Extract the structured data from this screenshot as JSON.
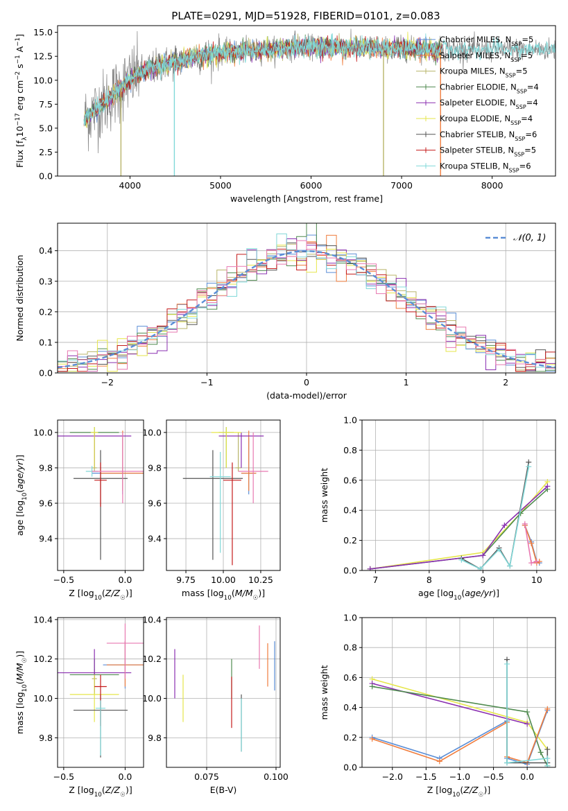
{
  "figure_title": "PLATE=0291, MJD=51928, FIBERID=0101, z=0.083",
  "colors": {
    "chabrier_miles": "#5b8ed6",
    "salpeter_miles": "#f07c3c",
    "kroupa_miles": "#b8b46a",
    "chabrier_elodie": "#4f8a4f",
    "salpeter_elodie": "#8a2fb0",
    "kroupa_elodie": "#e6e64a",
    "chabrier_stelib": "#555555",
    "salpeter_stelib": "#c41a1a",
    "kroupa_stelib": "#80d8d8",
    "extra_pink": "#e878b0",
    "normal": "#5b8ed6",
    "data": "#808080"
  },
  "chart_data": [
    {
      "id": "spectrum",
      "type": "line",
      "xlabel": "wavelength [Angstrom, rest frame]",
      "ylabel": "Flux [f_λ 10^-17 erg cm^-2 s^-1 A^-1]",
      "xlim": [
        3200,
        8700
      ],
      "ylim": [
        0,
        15.7
      ],
      "xticks": [
        4000,
        5000,
        6000,
        7000,
        8000
      ],
      "yticks": [
        0.0,
        2.5,
        5.0,
        7.5,
        10.0,
        12.5,
        15.0
      ],
      "legend_placement": "right",
      "legend": [
        {
          "key": "chabrier_miles",
          "label": "Chabrier MILES, N",
          "sub": "SSP",
          "suffix": "=5"
        },
        {
          "key": "salpeter_miles",
          "label": "Salpeter MILES, N",
          "sub": "SSP",
          "suffix": "=5"
        },
        {
          "key": "kroupa_miles",
          "label": "Kroupa MILES, N",
          "sub": "SSP",
          "suffix": "=5"
        },
        {
          "key": "chabrier_elodie",
          "label": "Chabrier ELODIE, N",
          "sub": "SSP",
          "suffix": "=4"
        },
        {
          "key": "salpeter_elodie",
          "label": "Salpeter ELODIE, N",
          "sub": "SSP",
          "suffix": "=4"
        },
        {
          "key": "kroupa_elodie",
          "label": "Kroupa ELODIE, N",
          "sub": "SSP",
          "suffix": "=4"
        },
        {
          "key": "chabrier_stelib",
          "label": "Chabrier STELIB, N",
          "sub": "SSP",
          "suffix": "=6"
        },
        {
          "key": "salpeter_stelib",
          "label": "Salpeter STELIB, N",
          "sub": "SSP",
          "suffix": "=5"
        },
        {
          "key": "kroupa_stelib",
          "label": "Kroupa STELIB, N",
          "sub": "SSP",
          "suffix": "=6"
        }
      ],
      "continuum": {
        "x": [
          3500,
          3700,
          3900,
          4050,
          4300,
          4600,
          5000,
          5500,
          6000,
          6500,
          7000,
          7400
        ],
        "y": [
          6.0,
          7.5,
          9.2,
          10.5,
          11.5,
          12.2,
          12.9,
          13.2,
          13.5,
          13.4,
          13.3,
          13.2
        ]
      },
      "dropouts": [
        {
          "x": 3900,
          "key": "kroupa_miles"
        },
        {
          "x": 4490,
          "key": "kroupa_stelib"
        },
        {
          "x": 6800,
          "key": "kroupa_miles"
        },
        {
          "x": 7430,
          "key": "salpeter_miles"
        }
      ]
    },
    {
      "id": "residuals",
      "type": "bar",
      "xlabel": "(data-model)/error",
      "ylabel": "Normed distribution",
      "xlim": [
        -2.5,
        2.5
      ],
      "ylim": [
        0,
        0.49
      ],
      "xticks": [
        -2,
        -1,
        0,
        1,
        2
      ],
      "yticks": [
        0.0,
        0.1,
        0.2,
        0.3,
        0.4
      ],
      "legend": [
        {
          "label": "𝒩(0, 1)"
        }
      ],
      "legend_placement": "top-right",
      "grid": true,
      "bin_width": 0.1
    },
    {
      "id": "age_vs_Z",
      "type": "scatter",
      "xlabel": "Z [log10(Z/Z☉)]",
      "ylabel": "age [log10(age/yr)]",
      "xlim": [
        -0.55,
        0.15
      ],
      "ylim": [
        9.22,
        10.07
      ],
      "xticks": [
        -0.5,
        0.0
      ],
      "xtick_labels": [
        "−0.5",
        "0.0"
      ],
      "yticks": [
        9.4,
        9.6,
        9.8,
        10.0
      ],
      "grid": true,
      "points": [
        {
          "key": "chabrier_miles",
          "x": -0.02,
          "y": 9.77,
          "xerr": 0.25,
          "yerr": [
            0.12,
            0.2
          ]
        },
        {
          "key": "salpeter_miles",
          "x": -0.02,
          "y": 9.77,
          "xerr": 0.18,
          "yerr": [
            0.1,
            0.24
          ]
        },
        {
          "key": "kroupa_miles",
          "x": -0.25,
          "y": 9.8,
          "xerr": 0.02,
          "yerr": [
            0.02,
            0.2
          ]
        },
        {
          "key": "chabrier_elodie",
          "x": -0.25,
          "y": 10.0,
          "xerr": 0.2,
          "yerr": [
            0.2,
            0.03
          ]
        },
        {
          "key": "salpeter_elodie",
          "x": -0.25,
          "y": 9.98,
          "xerr": 0.3,
          "yerr": [
            0.18,
            0.02
          ]
        },
        {
          "key": "kroupa_elodie",
          "x": -0.25,
          "y": 10.0,
          "xerr": 0.03,
          "yerr": [
            0.2,
            0.03
          ]
        },
        {
          "key": "chabrier_stelib",
          "x": -0.2,
          "y": 9.74,
          "xerr": 0.22,
          "yerr": [
            0.46,
            0.16
          ]
        },
        {
          "key": "salpeter_stelib",
          "x": -0.2,
          "y": 9.73,
          "xerr": 0.05,
          "yerr": [
            0.15,
            0.1
          ]
        },
        {
          "key": "kroupa_stelib",
          "x": -0.27,
          "y": 9.78,
          "xerr": 0.05,
          "yerr": [
            0.03,
            0.03
          ]
        },
        {
          "key": "extra_pink",
          "x": -0.02,
          "y": 9.78,
          "xerr": 0.25,
          "yerr": [
            0.18,
            0.22
          ]
        }
      ]
    },
    {
      "id": "age_vs_mass",
      "type": "scatter",
      "xlabel": "mass [log10(M/M☉)]",
      "ylabel": "",
      "xlim": [
        9.62,
        10.38
      ],
      "ylim": [
        9.22,
        10.07
      ],
      "xticks": [
        9.75,
        10.0,
        10.25
      ],
      "xtick_labels": [
        "9.75",
        "10.00",
        "10.25"
      ],
      "yticks": [
        9.4,
        9.6,
        9.8,
        10.0
      ],
      "grid": true,
      "points": [
        {
          "key": "chabrier_miles",
          "x": 10.17,
          "y": 9.77,
          "xerr": 0.05,
          "yerr": [
            0.12,
            0.2
          ]
        },
        {
          "key": "salpeter_miles",
          "x": 10.17,
          "y": 9.77,
          "xerr": 0.05,
          "yerr": [
            0.1,
            0.24
          ]
        },
        {
          "key": "kroupa_miles",
          "x": 10.1,
          "y": 9.8,
          "xerr": 0.02,
          "yerr": [
            0.02,
            0.2
          ]
        },
        {
          "key": "chabrier_elodie",
          "x": 10.02,
          "y": 10.0,
          "xerr": 0.05,
          "yerr": [
            0.2,
            0.03
          ]
        },
        {
          "key": "salpeter_elodie",
          "x": 10.12,
          "y": 9.98,
          "xerr": 0.15,
          "yerr": [
            0.18,
            0.02
          ]
        },
        {
          "key": "kroupa_elodie",
          "x": 10.02,
          "y": 10.0,
          "xerr": 0.1,
          "yerr": [
            0.2,
            0.03
          ]
        },
        {
          "key": "chabrier_stelib",
          "x": 9.93,
          "y": 9.74,
          "xerr": 0.2,
          "yerr": [
            0.46,
            0.16
          ]
        },
        {
          "key": "salpeter_stelib",
          "x": 10.06,
          "y": 9.73,
          "xerr": 0.06,
          "yerr": [
            0.48,
            0.1
          ]
        },
        {
          "key": "kroupa_stelib",
          "x": 9.98,
          "y": 9.75,
          "xerr": 0.07,
          "yerr": [
            0.43,
            0.14
          ]
        },
        {
          "key": "extra_pink",
          "x": 10.2,
          "y": 9.78,
          "xerr": 0.1,
          "yerr": [
            0.18,
            0.22
          ]
        }
      ]
    },
    {
      "id": "weight_vs_age",
      "type": "line",
      "xlabel": "age  [log10(age/yr)]",
      "ylabel": "mass weight",
      "xlim": [
        6.75,
        10.35
      ],
      "ylim": [
        0,
        1.0
      ],
      "xticks": [
        7,
        8,
        9,
        10
      ],
      "yticks": [
        0.0,
        0.2,
        0.4,
        0.6,
        0.8,
        1.0
      ],
      "grid": true,
      "series": [
        {
          "key": "kroupa_elodie",
          "x": [
            6.9,
            9.0,
            9.7,
            10.2
          ],
          "y": [
            0.01,
            0.12,
            0.38,
            0.59
          ]
        },
        {
          "key": "chabrier_elodie",
          "x": [
            6.9,
            9.0,
            9.7,
            10.2
          ],
          "y": [
            0.01,
            0.1,
            0.38,
            0.54
          ]
        },
        {
          "key": "salpeter_elodie",
          "x": [
            6.9,
            9.0,
            9.4,
            10.2
          ],
          "y": [
            0.01,
            0.1,
            0.3,
            0.56
          ]
        },
        {
          "key": "chabrier_stelib",
          "x": [
            8.6,
            8.95,
            9.3,
            9.5,
            9.85
          ],
          "y": [
            0.08,
            0.01,
            0.15,
            0.03,
            0.72
          ]
        },
        {
          "key": "kroupa_stelib",
          "x": [
            8.6,
            8.95,
            9.3,
            9.5,
            9.85
          ],
          "y": [
            0.07,
            0.01,
            0.14,
            0.03,
            0.69
          ]
        },
        {
          "key": "chabrier_miles",
          "x": [
            9.78,
            9.9,
            10.0,
            10.05
          ],
          "y": [
            0.3,
            0.19,
            0.06,
            0.05
          ]
        },
        {
          "key": "salpeter_miles",
          "x": [
            9.78,
            9.9,
            10.0,
            10.05
          ],
          "y": [
            0.3,
            0.18,
            0.05,
            0.06
          ]
        },
        {
          "key": "extra_pink",
          "x": [
            9.78,
            9.9,
            10.0
          ],
          "y": [
            0.31,
            0.05,
            0.06
          ]
        }
      ]
    },
    {
      "id": "mass_vs_Z",
      "type": "scatter",
      "xlabel": "Z [log10(Z/Z☉)]",
      "ylabel": "mass [log10(M/M☉)]",
      "xlim": [
        -0.55,
        0.15
      ],
      "ylim": [
        9.65,
        10.41
      ],
      "xticks": [
        -0.5,
        0.0
      ],
      "xtick_labels": [
        "−0.5",
        "0.0"
      ],
      "yticks": [
        9.8,
        10.0,
        10.2,
        10.4
      ],
      "grid": true,
      "points": [
        {
          "key": "chabrier_miles",
          "x": 0.0,
          "y": 10.17,
          "xerr": 0.18,
          "yerr": [
            0.12,
            0.12
          ]
        },
        {
          "key": "salpeter_miles",
          "x": 0.0,
          "y": 10.17,
          "xerr": 0.15,
          "yerr": [
            0.11,
            0.12
          ]
        },
        {
          "key": "kroupa_miles",
          "x": -0.25,
          "y": 10.1,
          "xerr": 0.02,
          "yerr": [
            0.03,
            0.05
          ]
        },
        {
          "key": "chabrier_elodie",
          "x": -0.25,
          "y": 10.12,
          "xerr": 0.2,
          "yerr": [
            0.1,
            0.08
          ]
        },
        {
          "key": "salpeter_elodie",
          "x": -0.25,
          "y": 10.13,
          "xerr": 0.3,
          "yerr": [
            0.1,
            0.12
          ]
        },
        {
          "key": "kroupa_elodie",
          "x": -0.25,
          "y": 10.02,
          "xerr": 0.2,
          "yerr": [
            0.14,
            0.1
          ]
        },
        {
          "key": "chabrier_stelib",
          "x": -0.2,
          "y": 9.94,
          "xerr": 0.22,
          "yerr": [
            0.24,
            0.08
          ]
        },
        {
          "key": "salpeter_stelib",
          "x": -0.2,
          "y": 10.06,
          "xerr": 0.05,
          "yerr": [
            0.2,
            0.06
          ]
        },
        {
          "key": "kroupa_stelib",
          "x": -0.2,
          "y": 9.95,
          "xerr": 0.04,
          "yerr": [
            0.24,
            0.04
          ]
        },
        {
          "key": "extra_pink",
          "x": 0.0,
          "y": 10.28,
          "xerr": 0.15,
          "yerr": [
            0.18,
            0.1
          ]
        }
      ]
    },
    {
      "id": "mass_vs_ebv",
      "type": "scatter",
      "xlabel": "E(B-V)",
      "ylabel": "",
      "xlim": [
        0.0605,
        0.1015
      ],
      "ylim": [
        9.65,
        10.41
      ],
      "xticks": [
        0.075,
        0.1
      ],
      "xtick_labels": [
        "0.075",
        "0.100"
      ],
      "yticks": [
        9.8,
        10.0,
        10.2,
        10.4
      ],
      "grid": true,
      "bars": [
        {
          "key": "salpeter_elodie",
          "x": 0.0635,
          "y0": 10.0,
          "y1": 10.25
        },
        {
          "key": "kroupa_elodie",
          "x": 0.0665,
          "y0": 9.88,
          "y1": 10.12
        },
        {
          "key": "chabrier_elodie",
          "x": 0.084,
          "y0": 10.0,
          "y1": 10.2
        },
        {
          "key": "salpeter_stelib",
          "x": 0.084,
          "y0": 9.85,
          "y1": 10.11
        },
        {
          "key": "chabrier_stelib",
          "x": 0.0875,
          "y0": 9.73,
          "y1": 10.02
        },
        {
          "key": "kroupa_stelib",
          "x": 0.0875,
          "y0": 9.73,
          "y1": 10.0
        },
        {
          "key": "extra_pink",
          "x": 0.094,
          "y0": 10.15,
          "y1": 10.37
        },
        {
          "key": "salpeter_miles",
          "x": 0.097,
          "y0": 10.06,
          "y1": 10.28
        },
        {
          "key": "chabrier_miles",
          "x": 0.0995,
          "y0": 10.04,
          "y1": 10.29
        }
      ]
    },
    {
      "id": "weight_vs_Z",
      "type": "line",
      "xlabel": "Z [log10(Z/Z☉)]",
      "ylabel": "mass weight",
      "xlim": [
        -2.45,
        0.42
      ],
      "ylim": [
        0,
        1.0
      ],
      "xticks": [
        -2.0,
        -1.5,
        -1.0,
        -0.5,
        0.0
      ],
      "xtick_labels": [
        "−2.0",
        "−1.5",
        "−1.0",
        "−0.5",
        "0.0"
      ],
      "yticks": [
        0.0,
        0.2,
        0.4,
        0.6,
        0.8,
        1.0
      ],
      "grid": true,
      "series": [
        {
          "key": "kroupa_elodie",
          "x": [
            -2.3,
            0.0,
            0.3
          ],
          "y": [
            0.59,
            0.3,
            0.12
          ]
        },
        {
          "key": "salpeter_elodie",
          "x": [
            -2.3,
            0.0
          ],
          "y": [
            0.56,
            0.29
          ]
        },
        {
          "key": "chabrier_elodie",
          "x": [
            -2.3,
            0.0,
            0.2,
            0.3
          ],
          "y": [
            0.54,
            0.37,
            0.1,
            0.01
          ]
        },
        {
          "key": "chabrier_miles",
          "x": [
            -2.3,
            -1.3,
            -0.3,
            -0.3,
            0.0,
            0.3
          ],
          "y": [
            0.2,
            0.06,
            0.31,
            0.06,
            0.02,
            0.38
          ]
        },
        {
          "key": "salpeter_miles",
          "x": [
            -2.3,
            -1.3,
            -0.3,
            -0.3,
            0.0,
            0.3
          ],
          "y": [
            0.19,
            0.04,
            0.3,
            0.07,
            0.03,
            0.39
          ]
        },
        {
          "key": "chabrier_stelib",
          "x": [
            -0.3,
            -0.3,
            0.3,
            0.3
          ],
          "y": [
            0.72,
            0.03,
            0.03,
            0.12
          ]
        },
        {
          "key": "kroupa_stelib",
          "x": [
            -0.3,
            -0.3,
            0.3,
            0.3
          ],
          "y": [
            0.69,
            0.03,
            0.06,
            0.01
          ]
        }
      ]
    }
  ]
}
